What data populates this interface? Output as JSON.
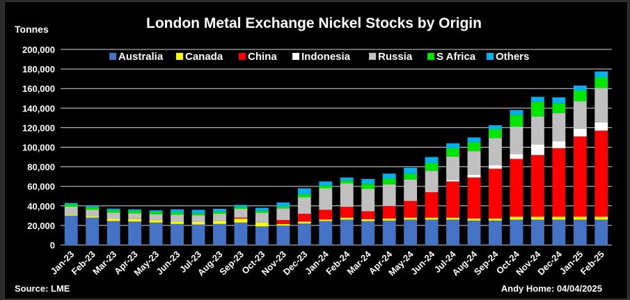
{
  "chart_data": {
    "type": "bar",
    "stacked": true,
    "title": "London Metal Exchange Nickel Stocks by Origin",
    "ylabel": "Tonnes",
    "ylim": [
      0,
      200000
    ],
    "ytick_step": 20000,
    "grid": true,
    "legend_position": "top",
    "source": "Source: LME",
    "credit": "Andy Home: 04/04/2025",
    "categories": [
      "Jan-23",
      "Feb-23",
      "Mar-23",
      "Apr-23",
      "May-23",
      "Jun-23",
      "Jul-23",
      "Aug-23",
      "Sep-23",
      "Oct-23",
      "Nov-23",
      "Dec-23",
      "Jan-24",
      "Feb-24",
      "Mar-24",
      "Apr-24",
      "May-24",
      "Jun-24",
      "Jul-24",
      "Aug-24",
      "Sep-24",
      "Oct-24",
      "Nov-24",
      "Dec-24",
      "Jan-25",
      "Feb-25"
    ],
    "series": [
      {
        "name": "Australia",
        "color": "#4472C4",
        "values": [
          30000,
          28000,
          24500,
          24000,
          23000,
          21500,
          21000,
          21500,
          23000,
          19000,
          20000,
          22000,
          24500,
          26000,
          24500,
          25000,
          26000,
          26000,
          26000,
          25000,
          25000,
          26000,
          26000,
          26000,
          26000,
          26000
        ]
      },
      {
        "name": "Canada",
        "color": "#FFFF00",
        "values": [
          1200,
          1200,
          2200,
          2500,
          2500,
          2500,
          2500,
          3000,
          4000,
          4000,
          1500,
          2000,
          1500,
          2000,
          2000,
          2000,
          2000,
          2000,
          2000,
          2000,
          2000,
          3000,
          3000,
          3000,
          3000,
          3000
        ]
      },
      {
        "name": "China",
        "color": "#FF0000",
        "values": [
          0,
          0,
          0,
          0,
          0,
          0,
          0,
          0,
          1000,
          0,
          4000,
          8000,
          10000,
          11000,
          8000,
          13000,
          17000,
          26000,
          37000,
          42000,
          51000,
          59000,
          63000,
          70000,
          82000,
          88000
        ]
      },
      {
        "name": "Indonesia",
        "color": "#FFFFFF",
        "values": [
          0,
          0,
          0,
          0,
          0,
          0,
          0,
          0,
          0,
          0,
          0,
          0,
          0,
          0,
          0,
          0,
          0,
          0,
          1500,
          3000,
          3500,
          5000,
          11000,
          7000,
          8000,
          8500
        ]
      },
      {
        "name": "Russia",
        "color": "#C0C0C0",
        "values": [
          8000,
          7000,
          6500,
          6000,
          6000,
          7000,
          7000,
          7500,
          9000,
          10000,
          12000,
          17000,
          22000,
          24000,
          23000,
          22000,
          22000,
          22000,
          24000,
          24000,
          28000,
          28000,
          28500,
          29000,
          28000,
          35000
        ]
      },
      {
        "name": "S Africa",
        "color": "#00E600",
        "values": [
          2500,
          2500,
          2500,
          2500,
          2500,
          2500,
          2000,
          2000,
          2000,
          2000,
          2000,
          3000,
          3000,
          3000,
          5000,
          6000,
          6000,
          8000,
          8500,
          9000,
          9000,
          12000,
          15000,
          10000,
          11000,
          11000
        ]
      },
      {
        "name": "Others",
        "color": "#00B0F0",
        "values": [
          1300,
          1300,
          1500,
          1500,
          1500,
          3000,
          3500,
          3000,
          2000,
          3000,
          4000,
          6000,
          4000,
          3000,
          5000,
          5000,
          6000,
          6000,
          5000,
          5000,
          4000,
          5000,
          5000,
          6000,
          5000,
          6000
        ]
      }
    ]
  }
}
